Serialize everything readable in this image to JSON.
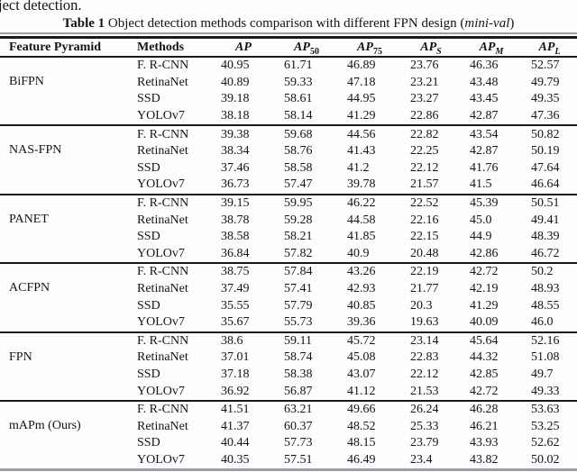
{
  "page": {
    "fragment_text": "ject detection.",
    "caption": {
      "bold": "Table 1",
      "mid": " Object detection methods comparison with different FPN design (",
      "italic": "mini-val",
      "end": ")"
    }
  },
  "colors": {
    "rule_dark": "#1a1a1a",
    "rule_gray": "#9aa0a6",
    "text": "#141414",
    "background": "#fdfdfd"
  },
  "table": {
    "headers": {
      "feature_pyramid": "Feature Pyramid",
      "methods": "Methods"
    },
    "metric_columns": [
      {
        "main": "AP",
        "sub": ""
      },
      {
        "main": "AP",
        "sub": "50"
      },
      {
        "main": "AP",
        "sub": "75"
      },
      {
        "main": "AP",
        "sub": "S"
      },
      {
        "main": "AP",
        "sub": "M"
      },
      {
        "main": "AP",
        "sub": "L"
      }
    ],
    "groups": [
      {
        "name": "BiFPN",
        "rows": [
          {
            "method": "F. R-CNN",
            "values": [
              "40.95",
              "61.71",
              "46.89",
              "23.76",
              "46.36",
              "52.57"
            ]
          },
          {
            "method": "RetinaNet",
            "values": [
              "40.89",
              "59.33",
              "47.18",
              "23.21",
              "43.48",
              "49.79"
            ]
          },
          {
            "method": "SSD",
            "values": [
              "39.18",
              "58.61",
              "44.95",
              "23.27",
              "43.45",
              "49.35"
            ]
          },
          {
            "method": "YOLOv7",
            "values": [
              "38.18",
              "58.14",
              "41.29",
              "22.86",
              "42.87",
              "47.36"
            ]
          }
        ]
      },
      {
        "name": "NAS-FPN",
        "rows": [
          {
            "method": "F. R-CNN",
            "values": [
              "39.38",
              "59.68",
              "44.56",
              "22.82",
              "43.54",
              "50.82"
            ]
          },
          {
            "method": "RetinaNet",
            "values": [
              "38.34",
              "58.76",
              "41.43",
              "22.25",
              "42.87",
              "50.19"
            ]
          },
          {
            "method": "SSD",
            "values": [
              "37.46",
              "58.58",
              "41.2",
              "22.12",
              "41.76",
              "47.64"
            ]
          },
          {
            "method": "YOLOv7",
            "values": [
              "36.73",
              "57.47",
              "39.78",
              "21.57",
              "41.5",
              "46.64"
            ]
          }
        ]
      },
      {
        "name": "PANET",
        "rows": [
          {
            "method": "F. R-CNN",
            "values": [
              "39.15",
              "59.95",
              "46.22",
              "22.52",
              "45.39",
              "50.51"
            ]
          },
          {
            "method": "RetinaNet",
            "values": [
              "38.78",
              "59.28",
              "44.58",
              "22.16",
              "45.0",
              "49.41"
            ]
          },
          {
            "method": "SSD",
            "values": [
              "38.58",
              "58.21",
              "41.85",
              "22.15",
              "44.9",
              "48.39"
            ]
          },
          {
            "method": "YOLOv7",
            "values": [
              "36.84",
              "57.82",
              "40.9",
              "20.48",
              "42.86",
              "46.72"
            ]
          }
        ]
      },
      {
        "name": "ACFPN",
        "rows": [
          {
            "method": "F. R-CNN",
            "values": [
              "38.75",
              "57.84",
              "43.26",
              "22.19",
              "42.72",
              "50.2"
            ]
          },
          {
            "method": "RetinaNet",
            "values": [
              "37.49",
              "57.41",
              "42.93",
              "21.77",
              "42.19",
              "48.93"
            ]
          },
          {
            "method": "SSD",
            "values": [
              "35.55",
              "57.79",
              "40.85",
              "20.3",
              "41.29",
              "48.55"
            ]
          },
          {
            "method": "YOLOv7",
            "values": [
              "35.67",
              "55.73",
              "39.36",
              "19.63",
              "40.09",
              "46.0"
            ]
          }
        ]
      },
      {
        "name": "FPN",
        "rows": [
          {
            "method": "F. R-CNN",
            "values": [
              "38.6",
              "59.11",
              "45.72",
              "23.14",
              "45.64",
              "52.16"
            ]
          },
          {
            "method": "RetinaNet",
            "values": [
              "37.01",
              "58.74",
              "45.08",
              "22.83",
              "44.32",
              "51.08"
            ]
          },
          {
            "method": "SSD",
            "values": [
              "37.18",
              "58.38",
              "43.07",
              "22.12",
              "42.85",
              "49.7"
            ]
          },
          {
            "method": "YOLOv7",
            "values": [
              "36.92",
              "56.87",
              "41.12",
              "21.53",
              "42.72",
              "49.33"
            ]
          }
        ]
      },
      {
        "name": "mAPm (Ours)",
        "rows": [
          {
            "method": "F. R-CNN",
            "values": [
              "41.51",
              "63.21",
              "49.66",
              "26.24",
              "46.28",
              "53.63"
            ]
          },
          {
            "method": "RetinaNet",
            "values": [
              "41.37",
              "60.37",
              "48.52",
              "25.33",
              "46.21",
              "53.25"
            ]
          },
          {
            "method": "SSD",
            "values": [
              "40.44",
              "57.73",
              "48.15",
              "23.79",
              "43.93",
              "52.62"
            ]
          },
          {
            "method": "YOLOv7",
            "values": [
              "40.35",
              "57.51",
              "46.49",
              "23.4",
              "43.82",
              "50.02"
            ]
          }
        ]
      }
    ]
  }
}
